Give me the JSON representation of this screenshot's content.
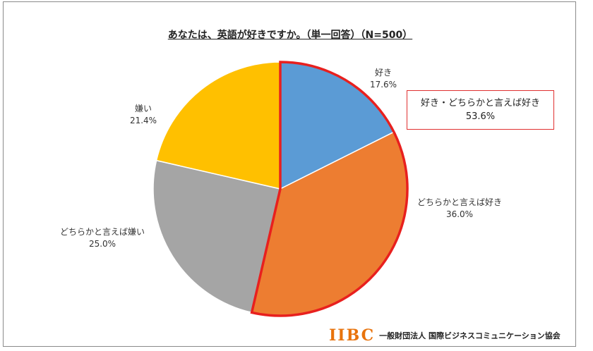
{
  "chart_data": {
    "type": "pie",
    "title": "あなたは、英語が好きですか。（単一回答）（N=500）",
    "start_angle_deg": 0,
    "direction": "clockwise",
    "slices": [
      {
        "label": "好き",
        "value": 17.6,
        "value_text": "17.6%",
        "color": "#5B9BD5"
      },
      {
        "label": "どちらかと言えば好き",
        "value": 36.0,
        "value_text": "36.0%",
        "color": "#ED7D31"
      },
      {
        "label": "どちらかと言えば嫌い",
        "value": 25.0,
        "value_text": "25.0%",
        "color": "#A5A5A5"
      },
      {
        "label": "嫌い",
        "value": 21.4,
        "value_text": "21.4%",
        "color": "#FFC000"
      }
    ],
    "highlight": {
      "label": "好き・どちらかと言えば好き",
      "value_text": "53.6%",
      "slices": [
        0,
        1
      ],
      "color": "#e8201e"
    }
  },
  "footer": {
    "logo": "IIBC",
    "org": "一般財団法人 国際ビジネスコミュニケーション協会"
  }
}
